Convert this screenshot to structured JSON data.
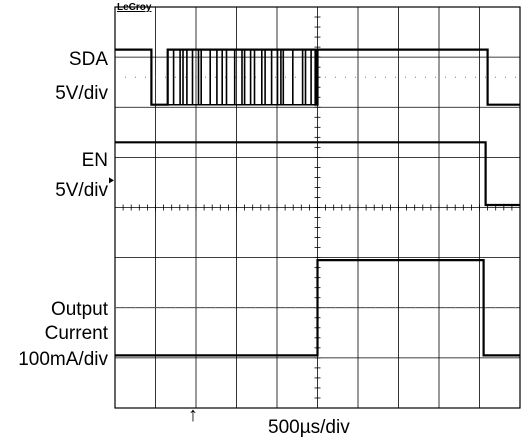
{
  "brand": "LeCroy",
  "timebase": "500µs/div",
  "channels": [
    {
      "name": "SDA",
      "scale": "5V/div"
    },
    {
      "name": "EN",
      "scale": "5V/div"
    },
    {
      "name": "Output",
      "name2": "Current",
      "scale": "100mA/div"
    }
  ],
  "trigger_marker": "↑",
  "chart_data": {
    "type": "line",
    "title": "",
    "xlabel": "500µs/div",
    "x_range_div": [
      0,
      10
    ],
    "y_range_div": [
      0,
      8
    ],
    "grid": true,
    "series": [
      {
        "name": "SDA",
        "baseline_div": 7.15,
        "high_div": 7.15,
        "low_div": 6.05,
        "points": [
          [
            0,
            7.15
          ],
          [
            0.9,
            7.15
          ],
          [
            0.9,
            6.05
          ],
          [
            1.3,
            6.05
          ],
          [
            1.3,
            7.15
          ],
          [
            4.95,
            7.15
          ],
          [
            4.95,
            6.05
          ],
          [
            5.0,
            6.05
          ],
          [
            5.0,
            7.15
          ],
          [
            9.2,
            7.15
          ],
          [
            9.2,
            6.05
          ],
          [
            10,
            6.05
          ]
        ],
        "toggle_region_div": [
          1.3,
          4.95
        ]
      },
      {
        "name": "EN",
        "points": [
          [
            0,
            5.3
          ],
          [
            9.15,
            5.3
          ],
          [
            9.15,
            4.05
          ],
          [
            10,
            4.05
          ]
        ]
      },
      {
        "name": "Output Current",
        "points": [
          [
            0,
            1.05
          ],
          [
            5.0,
            1.05
          ],
          [
            5.0,
            2.95
          ],
          [
            9.1,
            2.95
          ],
          [
            9.1,
            1.05
          ],
          [
            10,
            1.05
          ]
        ]
      }
    ]
  }
}
